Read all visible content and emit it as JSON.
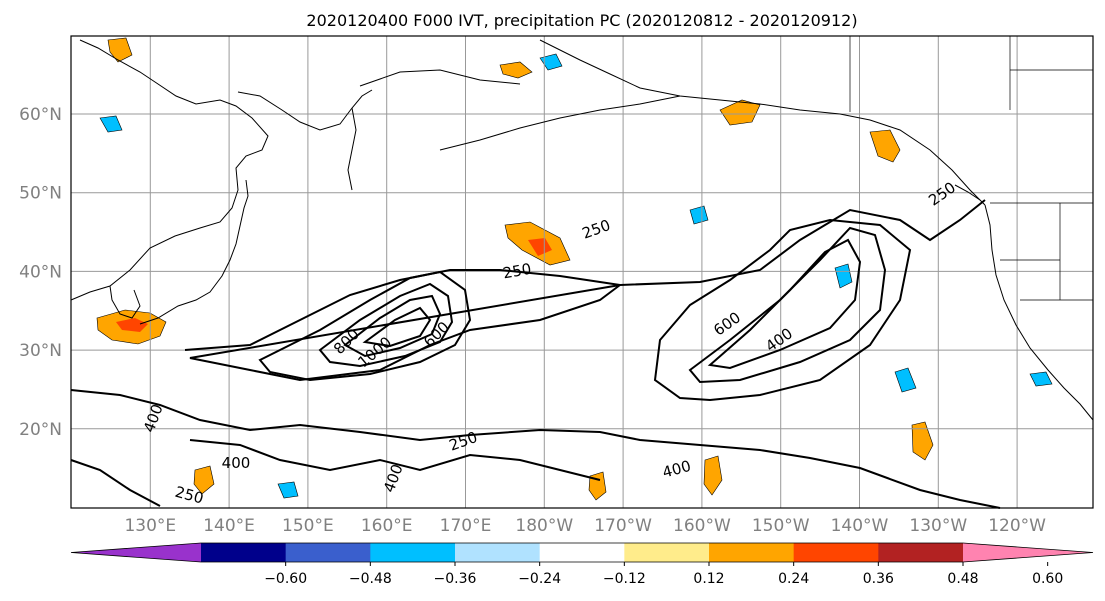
{
  "map": {
    "title": "2020120400 F000 IVT, precipitation PC (2020120812 - 2020120912)",
    "lon_labels": [
      "130°E",
      "140°E",
      "150°E",
      "160°E",
      "170°E",
      "180°W",
      "170°W",
      "160°W",
      "150°W",
      "140°W",
      "130°W",
      "120°W"
    ],
    "lat_labels": [
      "60°N",
      "50°N",
      "40°N",
      "30°N",
      "20°N"
    ],
    "contour_labels": [
      "250",
      "250",
      "250",
      "250",
      "250",
      "400",
      "400",
      "400",
      "400",
      "400",
      "600",
      "600",
      "800",
      "1000"
    ],
    "colorbar": {
      "tick_labels": [
        "−0.60",
        "−0.48",
        "−0.36",
        "−0.24",
        "−0.12",
        "0.12",
        "0.24",
        "0.36",
        "0.48",
        "0.60"
      ],
      "colors": [
        "#9932cc",
        "#00008b",
        "#3a5fcd",
        "#00bfff",
        "#b0e2ff",
        "#ffffff",
        "#ffec8b",
        "#ffa500",
        "#ff4500",
        "#b22222",
        "#ff83b0"
      ]
    }
  }
}
